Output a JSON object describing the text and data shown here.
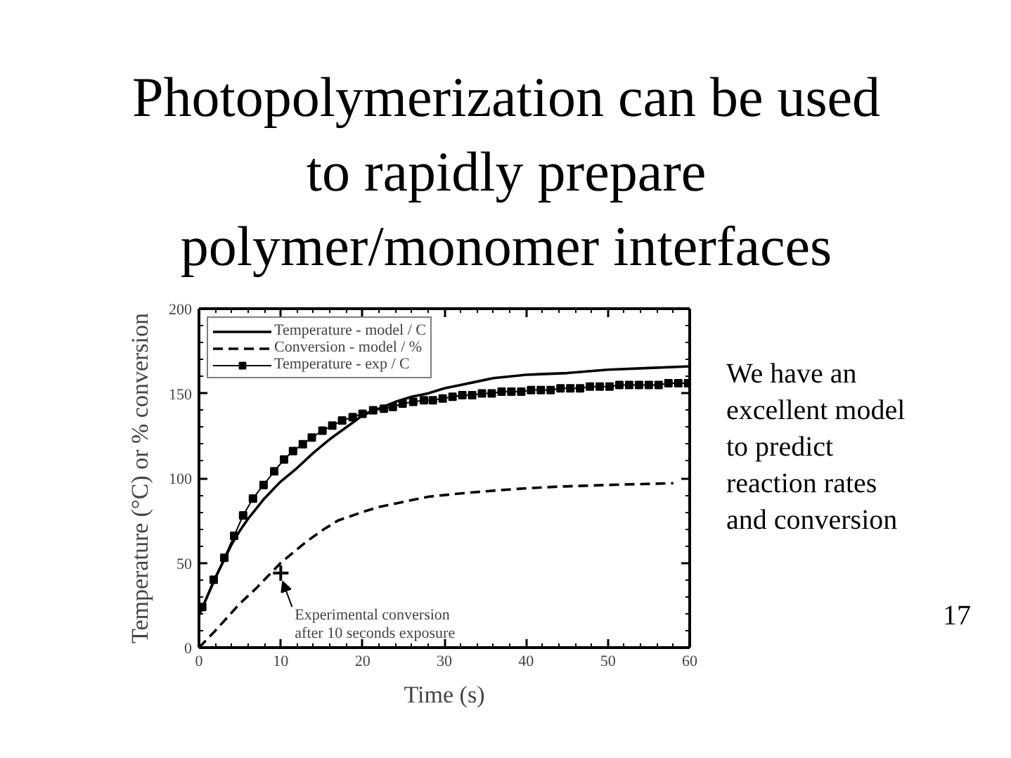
{
  "chart_data": {
    "type": "line",
    "title": "Photopolymerization can be used to rapidly prepare polymer/monomer interfaces",
    "xlabel": "Time (s)",
    "ylabel": "Temperature (°C) or % conversion",
    "xlim": [
      0,
      60
    ],
    "ylim": [
      0,
      200
    ],
    "xticks": [
      0,
      {
        "value": 2,
        "label": null
      },
      {
        "value": 4,
        "label": null
      },
      {
        "value": 6,
        "label": null
      },
      {
        "value": 8,
        "label": null
      },
      10,
      {
        "value": 12,
        "label": null
      },
      {
        "value": 14,
        "label": null
      },
      {
        "value": 16,
        "label": null
      },
      {
        "value": 18,
        "label": null
      },
      20,
      {
        "value": 22,
        "label": null
      },
      {
        "value": 24,
        "label": null
      },
      {
        "value": 26,
        "label": null
      },
      {
        "value": 28,
        "label": null
      },
      30,
      {
        "value": 32,
        "label": null
      },
      {
        "value": 34,
        "label": null
      },
      {
        "value": 36,
        "label": null
      },
      {
        "value": 38,
        "label": null
      },
      40,
      {
        "value": 42,
        "label": null
      },
      {
        "value": 44,
        "label": null
      },
      {
        "value": 46,
        "label": null
      },
      {
        "value": 48,
        "label": null
      },
      50,
      {
        "value": 52,
        "label": null
      },
      {
        "value": 54,
        "label": null
      },
      {
        "value": 56,
        "label": null
      },
      {
        "value": 58,
        "label": null
      },
      60
    ],
    "yticks": [
      0,
      {
        "value": 10,
        "label": null
      },
      {
        "value": 20,
        "label": null
      },
      {
        "value": 30,
        "label": null
      },
      {
        "value": 40,
        "label": null
      },
      50,
      {
        "value": 60,
        "label": null
      },
      {
        "value": 70,
        "label": null
      },
      {
        "value": 80,
        "label": null
      },
      {
        "value": 90,
        "label": null
      },
      100,
      {
        "value": 110,
        "label": null
      },
      {
        "value": 120,
        "label": null
      },
      {
        "value": 130,
        "label": null
      },
      {
        "value": 140,
        "label": null
      },
      150,
      {
        "value": 160,
        "label": null
      },
      {
        "value": 170,
        "label": null
      },
      {
        "value": 180,
        "label": null
      },
      {
        "value": 190,
        "label": null
      },
      200
    ],
    "legend": "top left",
    "series": [
      {
        "name": "Temperature - model / C",
        "color": "#000000",
        "line_style": "solid",
        "marker": "none",
        "x": [
          0,
          1,
          2,
          3,
          4,
          5,
          6,
          7,
          8,
          9,
          10,
          12,
          14,
          16,
          18,
          20,
          22,
          24,
          26,
          28,
          30,
          32,
          34,
          36,
          40,
          45,
          50,
          55,
          60
        ],
        "values": [
          19,
          30,
          41,
          51,
          61,
          69,
          76,
          82,
          88,
          93,
          98,
          106,
          115,
          123,
          130,
          137,
          141,
          145,
          148,
          150,
          153,
          155,
          157,
          159,
          161,
          162,
          164,
          165,
          166
        ]
      },
      {
        "name": "Conversion - model / %",
        "color": "#000000",
        "line_style": "dashed",
        "marker": "none",
        "x": [
          0,
          2,
          5,
          7,
          10,
          13,
          15,
          17,
          20,
          22,
          24,
          26,
          28,
          30,
          32,
          37,
          40,
          44,
          50,
          58
        ],
        "values": [
          0,
          10,
          26,
          35,
          50,
          62,
          69,
          75,
          80,
          83,
          85,
          87,
          89,
          90,
          91,
          93,
          94,
          95,
          96,
          97
        ]
      },
      {
        "name": "Temperature - exp / C",
        "color": "#000000",
        "line_style": "solid",
        "marker": "square",
        "x": [
          0.4,
          1.8,
          3.1,
          4.3,
          5.4,
          6.6,
          7.9,
          9.2,
          10.4,
          11.5,
          12.7,
          13.8,
          15.1,
          16.3,
          17.5,
          18.8,
          20.0,
          21.3,
          22.6,
          23.7,
          24.9,
          26.2,
          27.5,
          28.6,
          29.8,
          31.0,
          32.2,
          33.4,
          34.6,
          35.8,
          37.0,
          38.2,
          39.4,
          40.6,
          41.8,
          43.0,
          44.2,
          45.4,
          46.6,
          47.8,
          49.0,
          50.2,
          51.4,
          52.6,
          53.8,
          55.0,
          56.2,
          57.4,
          58.6,
          59.8
        ],
        "values": [
          24,
          40,
          53,
          66,
          78,
          88,
          96,
          104,
          111,
          116,
          120,
          124,
          128,
          131,
          134,
          136,
          138,
          140,
          141,
          142,
          144,
          145,
          146,
          146,
          147,
          148,
          149,
          149,
          150,
          150,
          151,
          151,
          151,
          152,
          152,
          152,
          153,
          153,
          153,
          154,
          154,
          154,
          155,
          155,
          155,
          155,
          155,
          156,
          156,
          156
        ]
      },
      {
        "type": "scatter",
        "color": "#000000",
        "marker": "cross",
        "x": [
          10
        ],
        "values": [
          44
        ]
      }
    ],
    "annotations": [
      {
        "text": "Experimental conversion after 10 seconds exposure",
        "x": 10,
        "y": 44
      },
      "We have an excellent model to predict reaction rates and conversion",
      "17"
    ]
  }
}
